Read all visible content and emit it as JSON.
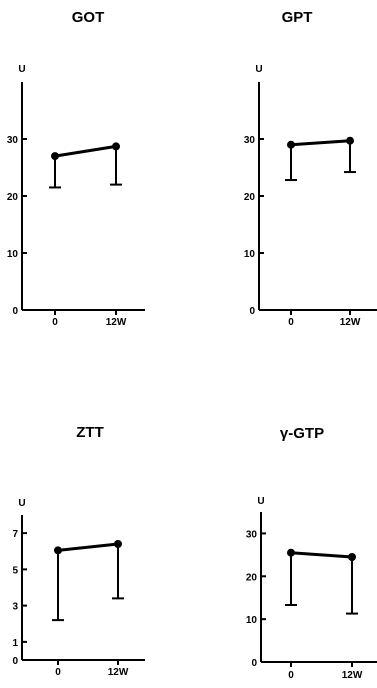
{
  "chart_data": [
    {
      "type": "line",
      "title": "GOT",
      "ylabel": "U",
      "categories": [
        "0",
        "12W"
      ],
      "ylim": [
        0,
        40
      ],
      "yticks": [
        0,
        10,
        20,
        30
      ],
      "series": [
        {
          "values": [
            27,
            28.7
          ],
          "lower_error": [
            21.5,
            22
          ]
        }
      ]
    },
    {
      "type": "line",
      "title": "GPT",
      "ylabel": "U",
      "categories": [
        "0",
        "12W"
      ],
      "ylim": [
        0,
        40
      ],
      "yticks": [
        0,
        10,
        20,
        30
      ],
      "series": [
        {
          "values": [
            29,
            29.7
          ],
          "lower_error": [
            22.8,
            24.2
          ]
        }
      ]
    },
    {
      "type": "line",
      "title": "ZTT",
      "ylabel": "U",
      "categories": [
        "0",
        "12W"
      ],
      "ylim": [
        0,
        8
      ],
      "yticks": [
        0,
        1,
        3,
        5,
        7
      ],
      "series": [
        {
          "values": [
            6.05,
            6.4
          ],
          "lower_error": [
            2.2,
            3.4
          ]
        }
      ]
    },
    {
      "type": "line",
      "title": "γ-GTP",
      "ylabel": "U",
      "categories": [
        "0",
        "12W"
      ],
      "ylim": [
        0,
        40
      ],
      "yticks": [
        0,
        10,
        20,
        30
      ],
      "series": [
        {
          "values": [
            25.5,
            24.5
          ],
          "lower_error": [
            13.3,
            11.3
          ]
        }
      ]
    }
  ]
}
